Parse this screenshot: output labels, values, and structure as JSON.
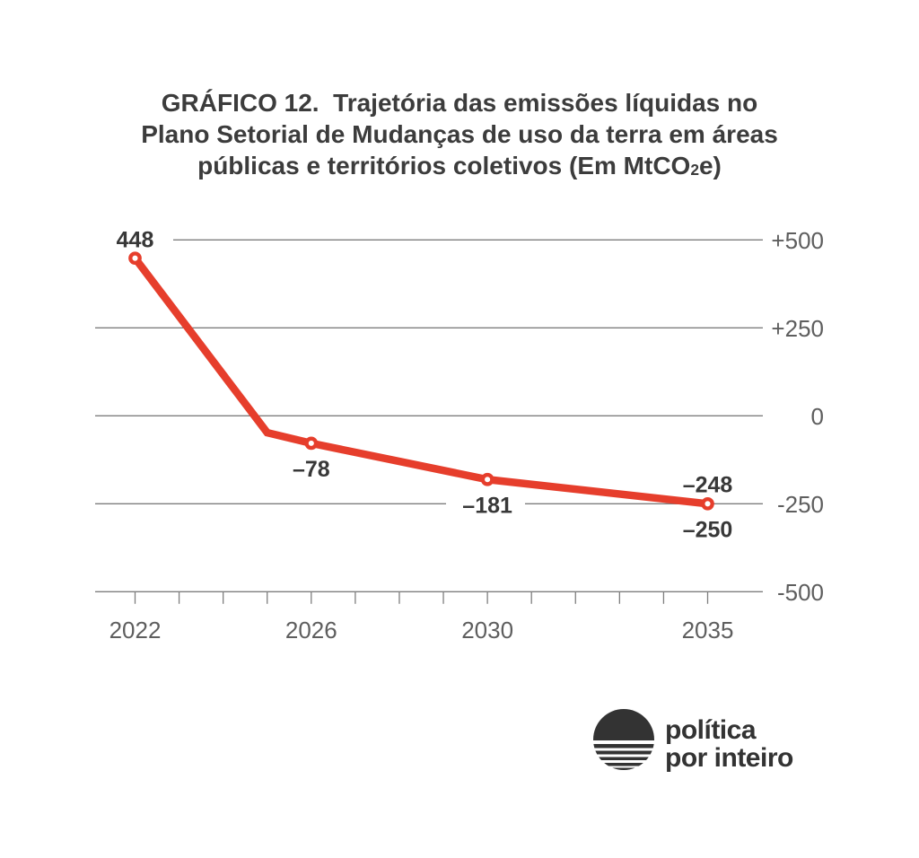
{
  "title": {
    "line1": "GRÁFICO 12.  Trajetória das emissões líquidas no",
    "line2": "Plano Setorial de Mudanças de uso da terra em áreas",
    "line3_prefix": "públicas e territórios coletivos (Em MtCO",
    "line3_sub": "2",
    "line3_suffix": "e)"
  },
  "logo": {
    "line1": "política",
    "line2": "por inteiro"
  },
  "colors": {
    "line": "#e63e2c",
    "value_text": "#383838",
    "axis_text": "#5e5e5e",
    "gridline": "#7e7e7e",
    "title_text": "#3c3c3c",
    "logo": "#333333"
  },
  "chart_data": {
    "type": "line",
    "title": "GRÁFICO 12. Trajetória das emissões líquidas no Plano Setorial de Mudanças de uso da terra em áreas públicas e territórios coletivos (Em MtCO2e)",
    "unit": "MtCO2e",
    "grid": true,
    "legend": false,
    "line_color": "#e63e2c",
    "series": [
      {
        "name": "Emissões líquidas",
        "points": [
          {
            "year": 2022,
            "value": 448,
            "label": "448",
            "label_pos": "above",
            "marker": true
          },
          {
            "year": 2025,
            "value": -48,
            "label": "",
            "label_pos": "",
            "marker": false,
            "estimated": true
          },
          {
            "year": 2026,
            "value": -78,
            "label": "–78",
            "label_pos": "below",
            "marker": true
          },
          {
            "year": 2030,
            "value": -181,
            "label": "–181",
            "label_pos": "below",
            "marker": true
          },
          {
            "year": 2035,
            "value": -250,
            "label": "–250",
            "label_pos": "below",
            "marker": true,
            "label2": "–248",
            "label2_pos": "above"
          }
        ]
      }
    ],
    "x_axis": {
      "start_year": 2022,
      "end_year": 2035,
      "labeled_years": [
        2022,
        2026,
        2030,
        2035
      ]
    },
    "y_axis": {
      "lim": [
        -500,
        500
      ],
      "gridlines": [
        {
          "label": "+500",
          "value": 500,
          "segments": [
            [
              193,
              850
            ]
          ]
        },
        {
          "label": "+250",
          "value": 250,
          "segments": [
            [
              106,
              850
            ]
          ]
        },
        {
          "label": "0",
          "value": 0,
          "segments": [
            [
              106,
              850
            ]
          ]
        },
        {
          "label": "-250",
          "value": -250,
          "segments": [
            [
              106,
              497
            ],
            [
              585,
              850
            ]
          ]
        },
        {
          "label": "-500",
          "value": -500,
          "segments": [
            [
              106,
              850
            ]
          ]
        }
      ]
    }
  }
}
